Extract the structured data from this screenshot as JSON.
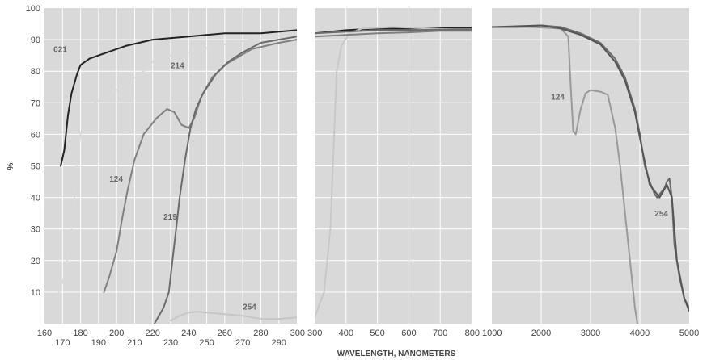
{
  "chart_data": {
    "type": "line",
    "ylabel": "%",
    "xlabel": "WAVELENGTH, NANOMETERS",
    "ylim": [
      0,
      100
    ],
    "y_ticks": [
      "10",
      "20",
      "30",
      "40",
      "50",
      "60",
      "70",
      "80",
      "90",
      "100"
    ],
    "grid": true,
    "panels": [
      {
        "id": "uv",
        "xlim": [
          160,
          300
        ],
        "x_ticks_upper": [
          "160",
          "180",
          "200",
          "220",
          "240",
          "260",
          "280",
          "300"
        ],
        "x_ticks_lower": [
          "170",
          "190",
          "210",
          "230",
          "250",
          "270",
          "290"
        ],
        "series": [
          {
            "name": "021",
            "color": "#222222",
            "label_at": [
              165,
              86
            ],
            "points": [
              [
                169,
                50
              ],
              [
                171,
                55
              ],
              [
                173,
                66
              ],
              [
                175,
                73
              ],
              [
                178,
                79
              ],
              [
                180,
                82
              ],
              [
                185,
                84
              ],
              [
                195,
                86
              ],
              [
                205,
                88
              ],
              [
                220,
                90
              ],
              [
                240,
                91
              ],
              [
                260,
                92
              ],
              [
                280,
                92
              ],
              [
                300,
                93
              ]
            ]
          },
          {
            "name": "214",
            "color": "#dadada",
            "label_at": [
              230,
              81
            ],
            "points": [
              [
                160,
                3
              ],
              [
                164,
                6
              ],
              [
                168,
                10
              ],
              [
                171,
                15
              ],
              [
                174,
                25
              ],
              [
                176,
                35
              ],
              [
                178,
                52
              ],
              [
                180,
                60
              ],
              [
                183,
                66
              ],
              [
                188,
                70
              ],
              [
                200,
                74
              ],
              [
                215,
                80
              ],
              [
                220,
                83
              ],
              [
                225,
                85
              ],
              [
                232,
                85
              ],
              [
                240,
                86
              ],
              [
                255,
                88
              ],
              [
                275,
                90
              ],
              [
                300,
                92
              ]
            ]
          },
          {
            "name": "124",
            "color": "#808080",
            "label_at": [
              196,
              45
            ],
            "points": [
              [
                193,
                10
              ],
              [
                196,
                15
              ],
              [
                200,
                23
              ],
              [
                203,
                33
              ],
              [
                206,
                42
              ],
              [
                210,
                52
              ],
              [
                215,
                60
              ],
              [
                222,
                65
              ],
              [
                228,
                68
              ],
              [
                232,
                67
              ],
              [
                236,
                63
              ],
              [
                240,
                62
              ],
              [
                243,
                65
              ],
              [
                247,
                72
              ],
              [
                253,
                78
              ],
              [
                260,
                82
              ],
              [
                275,
                87
              ],
              [
                290,
                89
              ],
              [
                300,
                90
              ]
            ]
          },
          {
            "name": "219",
            "color": "#6b6b6b",
            "label_at": [
              226,
              33
            ],
            "points": [
              [
                221,
                0
              ],
              [
                226,
                5
              ],
              [
                229,
                10
              ],
              [
                231,
                20
              ],
              [
                233,
                30
              ],
              [
                235,
                40
              ],
              [
                238,
                52
              ],
              [
                241,
                62
              ],
              [
                244,
                68
              ],
              [
                248,
                73
              ],
              [
                255,
                79
              ],
              [
                262,
                83
              ],
              [
                270,
                86
              ],
              [
                280,
                89
              ],
              [
                290,
                90
              ],
              [
                300,
                91
              ]
            ]
          },
          {
            "name": "254",
            "color": "#c6c6c6",
            "label_at": [
              270,
              4.5
            ],
            "points": [
              [
                230,
                1
              ],
              [
                235,
                2.5
              ],
              [
                240,
                3.5
              ],
              [
                245,
                3.8
              ],
              [
                250,
                3.5
              ],
              [
                260,
                3
              ],
              [
                270,
                2.5
              ],
              [
                280,
                1.5
              ],
              [
                290,
                1.5
              ],
              [
                300,
                2
              ]
            ]
          }
        ]
      },
      {
        "id": "vis",
        "xlim": [
          300,
          800
        ],
        "x_ticks_upper": [
          "300",
          "400",
          "500",
          "600",
          "700",
          "800"
        ],
        "x_ticks_lower": [],
        "series": [
          {
            "name": "021",
            "color": "#222222",
            "points": [
              [
                300,
                92
              ],
              [
                400,
                93
              ],
              [
                500,
                93.5
              ],
              [
                600,
                93.5
              ],
              [
                700,
                93.8
              ],
              [
                800,
                93.8
              ]
            ]
          },
          {
            "name": "214",
            "color": "#c8c8c8",
            "points": [
              [
                300,
                2
              ],
              [
                330,
                10
              ],
              [
                350,
                30
              ],
              [
                360,
                55
              ],
              [
                370,
                80
              ],
              [
                385,
                88
              ],
              [
                410,
                92
              ],
              [
                450,
                93.5
              ],
              [
                550,
                94
              ],
              [
                800,
                93
              ]
            ]
          },
          {
            "name": "124",
            "color": "#808080",
            "points": [
              [
                300,
                91
              ],
              [
                400,
                91.5
              ],
              [
                500,
                92
              ],
              [
                600,
                92.3
              ],
              [
                700,
                92.8
              ],
              [
                800,
                92.8
              ]
            ]
          },
          {
            "name": "219",
            "color": "#6b6b6b",
            "points": [
              [
                300,
                92
              ],
              [
                400,
                92.5
              ],
              [
                500,
                93
              ],
              [
                600,
                93
              ],
              [
                700,
                93.2
              ],
              [
                800,
                93.2
              ]
            ]
          }
        ]
      },
      {
        "id": "ir",
        "xlim": [
          1000,
          5000
        ],
        "x_ticks_upper": [
          "1000",
          "2000",
          "3000",
          "4000",
          "5000"
        ],
        "x_ticks_lower": [],
        "series": [
          {
            "name": "124",
            "color": "#9a9a9a",
            "label_at": [
              2200,
              71
            ],
            "points": [
              [
                1000,
                94
              ],
              [
                1800,
                94
              ],
              [
                2400,
                93.5
              ],
              [
                2550,
                91
              ],
              [
                2600,
                75
              ],
              [
                2650,
                61
              ],
              [
                2700,
                60
              ],
              [
                2800,
                68
              ],
              [
                2900,
                73
              ],
              [
                3000,
                74
              ],
              [
                3200,
                73.5
              ],
              [
                3350,
                72.5
              ],
              [
                3500,
                62
              ],
              [
                3600,
                50
              ],
              [
                3700,
                35
              ],
              [
                3800,
                20
              ],
              [
                3900,
                5
              ],
              [
                3950,
                0
              ]
            ]
          },
          {
            "name": "254",
            "color": "#6b6b6b",
            "label_at": [
              4300,
              34
            ],
            "points": [
              [
                1000,
                94
              ],
              [
                1500,
                94
              ],
              [
                2000,
                94.5
              ],
              [
                2400,
                94
              ],
              [
                2800,
                92
              ],
              [
                3200,
                89
              ],
              [
                3500,
                84
              ],
              [
                3700,
                78
              ],
              [
                3900,
                68
              ],
              [
                4000,
                60
              ],
              [
                4100,
                50
              ],
              [
                4200,
                45
              ],
              [
                4300,
                41
              ],
              [
                4350,
                40
              ],
              [
                4400,
                41
              ],
              [
                4500,
                43
              ],
              [
                4550,
                45
              ],
              [
                4600,
                46
              ],
              [
                4650,
                40
              ],
              [
                4700,
                25
              ],
              [
                4800,
                15
              ],
              [
                4900,
                8
              ],
              [
                5000,
                5
              ]
            ]
          },
          {
            "name": "021",
            "color": "#555555",
            "points": [
              [
                1000,
                94
              ],
              [
                2000,
                94.5
              ],
              [
                2400,
                93.5
              ],
              [
                2800,
                91.5
              ],
              [
                3200,
                88.5
              ],
              [
                3500,
                83
              ],
              [
                3700,
                77
              ],
              [
                3900,
                67
              ],
              [
                4050,
                55
              ],
              [
                4200,
                44
              ],
              [
                4400,
                40
              ],
              [
                4550,
                44
              ],
              [
                4650,
                40
              ],
              [
                4750,
                20
              ],
              [
                4900,
                8
              ],
              [
                5000,
                4
              ]
            ]
          }
        ]
      }
    ]
  }
}
